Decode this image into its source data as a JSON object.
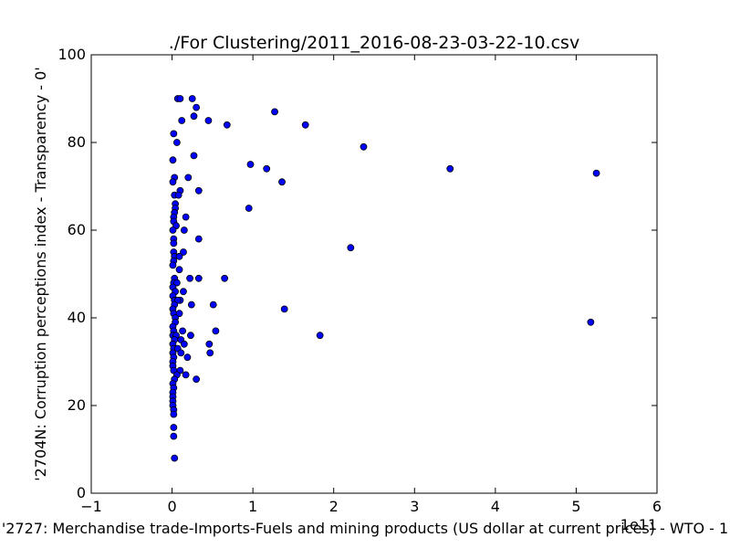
{
  "chart_data": {
    "type": "scatter",
    "title": "./For Clustering/2011_2016-08-23-03-22-10.csv",
    "xlabel": "'2727: Merchandise trade-Imports-Fuels and mining products (US dollar at current prices) - WTO - 1",
    "ylabel": "'2704N: Corruption perceptions index - Transparency - 0'",
    "x_offset_label": "1e11",
    "xlim": [
      -1,
      6
    ],
    "ylim": [
      0,
      100
    ],
    "xticks": [
      "−1",
      "0",
      "1",
      "2",
      "3",
      "4",
      "5",
      "6"
    ],
    "yticks": [
      "0",
      "20",
      "40",
      "60",
      "80",
      "100"
    ],
    "grid": false,
    "marker_color": "#0000ff",
    "points": [
      [
        0.07,
        90
      ],
      [
        0.1,
        90
      ],
      [
        0.25,
        90
      ],
      [
        0.3,
        88
      ],
      [
        0.27,
        86
      ],
      [
        0.12,
        85
      ],
      [
        0.45,
        85
      ],
      [
        0.68,
        84
      ],
      [
        1.27,
        87
      ],
      [
        1.65,
        84
      ],
      [
        0.02,
        82
      ],
      [
        0.06,
        80
      ],
      [
        2.37,
        79
      ],
      [
        0.27,
        77
      ],
      [
        0.01,
        76
      ],
      [
        0.97,
        75
      ],
      [
        1.17,
        74
      ],
      [
        3.44,
        74
      ],
      [
        5.25,
        73
      ],
      [
        0.03,
        72
      ],
      [
        0.2,
        72
      ],
      [
        0.01,
        71
      ],
      [
        1.36,
        71
      ],
      [
        0.1,
        69
      ],
      [
        0.33,
        69
      ],
      [
        0.03,
        68
      ],
      [
        0.08,
        68
      ],
      [
        0.04,
        66
      ],
      [
        0.04,
        65
      ],
      [
        0.95,
        65
      ],
      [
        0.03,
        64
      ],
      [
        0.02,
        63
      ],
      [
        0.17,
        63
      ],
      [
        0.02,
        62
      ],
      [
        0.05,
        61
      ],
      [
        0.01,
        60
      ],
      [
        0.15,
        60
      ],
      [
        0.02,
        58
      ],
      [
        0.33,
        58
      ],
      [
        0.02,
        57
      ],
      [
        2.21,
        56
      ],
      [
        0.02,
        55
      ],
      [
        0.14,
        55
      ],
      [
        0.03,
        54
      ],
      [
        0.09,
        54
      ],
      [
        0.02,
        53
      ],
      [
        0.01,
        52
      ],
      [
        0.09,
        51
      ],
      [
        0.03,
        49
      ],
      [
        0.22,
        49
      ],
      [
        0.33,
        49
      ],
      [
        0.65,
        49
      ],
      [
        0.02,
        48
      ],
      [
        0.06,
        48
      ],
      [
        0.01,
        47
      ],
      [
        0.04,
        46
      ],
      [
        0.14,
        46
      ],
      [
        0.01,
        45
      ],
      [
        0.03,
        44
      ],
      [
        0.1,
        44
      ],
      [
        0.07,
        44
      ],
      [
        0.03,
        43
      ],
      [
        0.24,
        43
      ],
      [
        0.51,
        43
      ],
      [
        0.01,
        42
      ],
      [
        0.02,
        41
      ],
      [
        0.09,
        41
      ],
      [
        1.39,
        42
      ],
      [
        0.04,
        40
      ],
      [
        0.04,
        39
      ],
      [
        5.18,
        39
      ],
      [
        0.01,
        38
      ],
      [
        0.02,
        37
      ],
      [
        0.13,
        37
      ],
      [
        0.54,
        37
      ],
      [
        0.01,
        36
      ],
      [
        0.05,
        36
      ],
      [
        0.23,
        36
      ],
      [
        1.83,
        36
      ],
      [
        0.03,
        35
      ],
      [
        0.11,
        35
      ],
      [
        0.01,
        34
      ],
      [
        0.15,
        34
      ],
      [
        0.46,
        34
      ],
      [
        0.02,
        33
      ],
      [
        0.07,
        33
      ],
      [
        0.01,
        32
      ],
      [
        0.11,
        32
      ],
      [
        0.47,
        32
      ],
      [
        0.02,
        31
      ],
      [
        0.19,
        31
      ],
      [
        0.01,
        30
      ],
      [
        0.01,
        29
      ],
      [
        0.02,
        28
      ],
      [
        0.1,
        28
      ],
      [
        0.06,
        27
      ],
      [
        0.17,
        27
      ],
      [
        0.03,
        26
      ],
      [
        0.3,
        26
      ],
      [
        0.01,
        25
      ],
      [
        0.02,
        24
      ],
      [
        0.01,
        23
      ],
      [
        0.01,
        22
      ],
      [
        0.01,
        21
      ],
      [
        0.01,
        20
      ],
      [
        0.02,
        19
      ],
      [
        0.02,
        18
      ],
      [
        0.02,
        15
      ],
      [
        0.02,
        13
      ],
      [
        0.03,
        8
      ]
    ]
  }
}
